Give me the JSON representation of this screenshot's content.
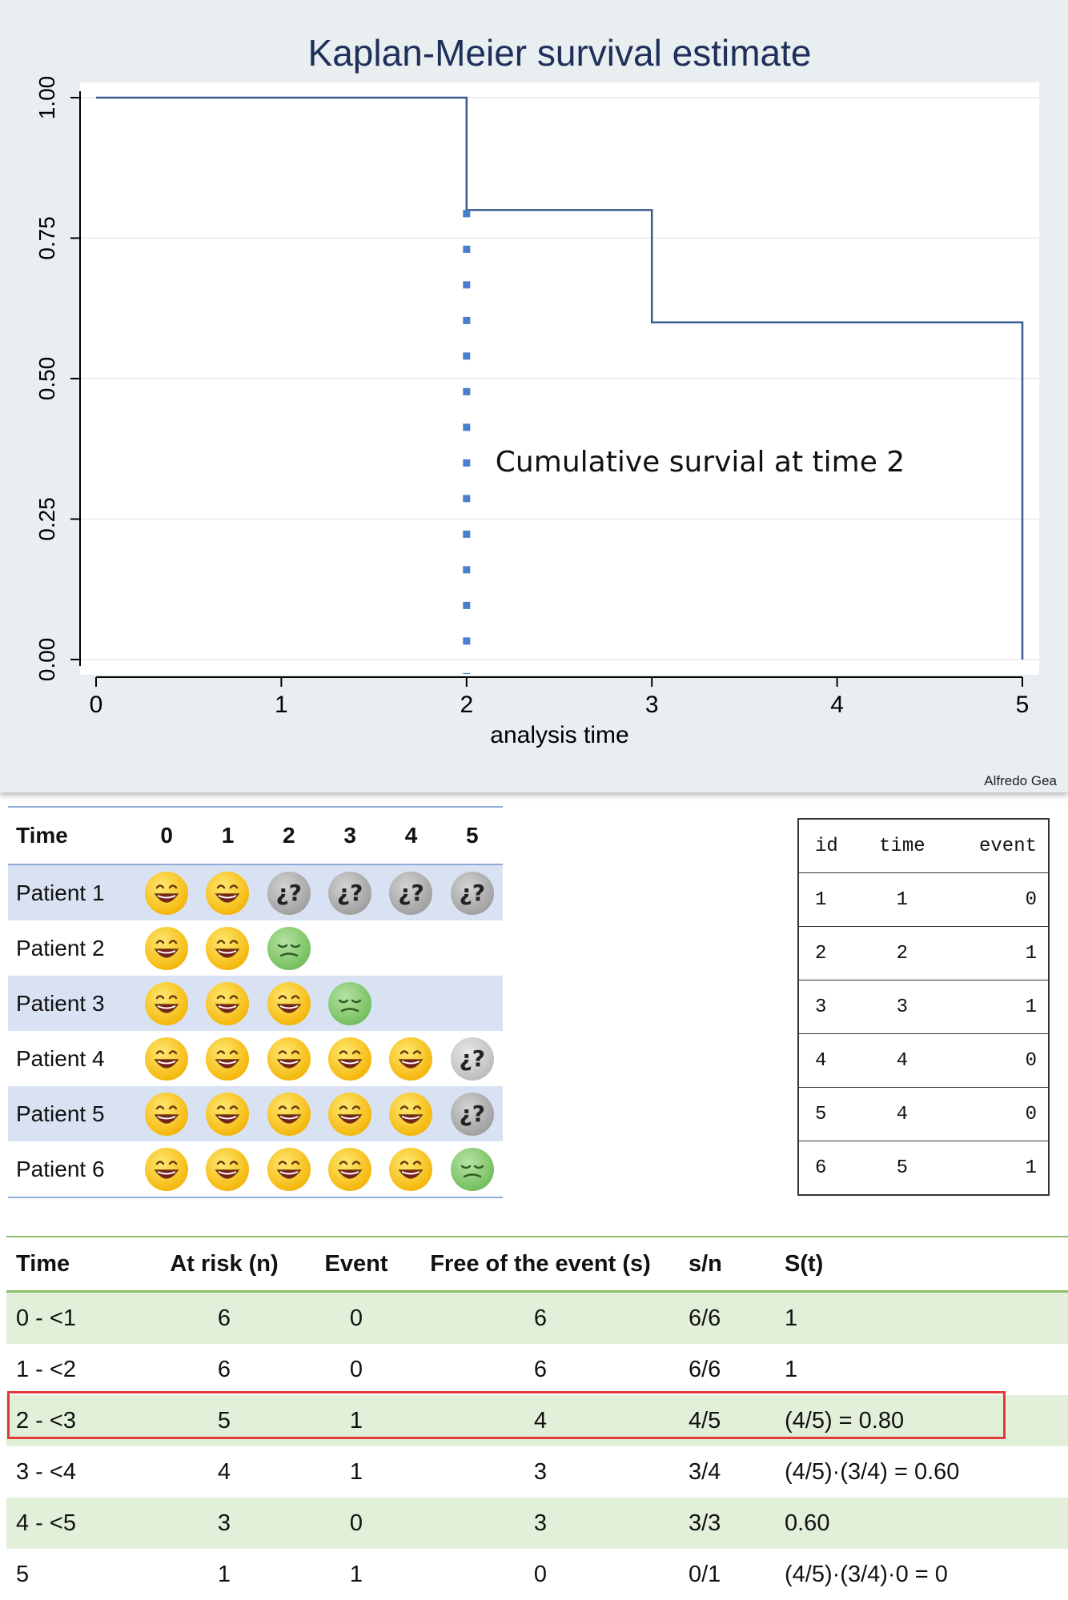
{
  "chart_data": {
    "type": "line",
    "subtype": "step",
    "title": "Kaplan-Meier survival estimate",
    "xlabel": "analysis time",
    "ylabel": "",
    "xlim": [
      0,
      5
    ],
    "ylim": [
      0,
      1
    ],
    "x_ticks": [
      "0",
      "1",
      "2",
      "3",
      "4",
      "5"
    ],
    "y_ticks": [
      "0.00",
      "0.25",
      "0.50",
      "0.75",
      "1.00"
    ],
    "grid": true,
    "series": [
      {
        "x": [
          0,
          2,
          3,
          5,
          5
        ],
        "y": [
          1.0,
          0.8,
          0.6,
          0.6,
          0.0
        ],
        "color": "#3b5b8a"
      }
    ],
    "annotations": [
      {
        "text": "Cumulative survial at time 2",
        "x": 2,
        "y_start": 0.8,
        "y_end": 0,
        "style": "dotted",
        "color": "#4a7fcf"
      }
    ]
  },
  "credit": "Alfredo Gea",
  "patients_table": {
    "header": [
      "Time",
      "0",
      "1",
      "2",
      "3",
      "4",
      "5"
    ],
    "rows": [
      {
        "label": "Patient 1",
        "states": [
          "happy",
          "happy",
          "unknown",
          "unknown",
          "unknown",
          "unknown"
        ]
      },
      {
        "label": "Patient 2",
        "states": [
          "happy",
          "happy",
          "sad",
          "",
          "",
          ""
        ]
      },
      {
        "label": "Patient 3",
        "states": [
          "happy",
          "happy",
          "happy",
          "sad",
          "",
          ""
        ]
      },
      {
        "label": "Patient 4",
        "states": [
          "happy",
          "happy",
          "happy",
          "happy",
          "happy",
          "unknown-light"
        ]
      },
      {
        "label": "Patient 5",
        "states": [
          "happy",
          "happy",
          "happy",
          "happy",
          "happy",
          "unknown"
        ]
      },
      {
        "label": "Patient 6",
        "states": [
          "happy",
          "happy",
          "happy",
          "happy",
          "happy",
          "sad"
        ]
      }
    ],
    "unknown_symbol": "¿?"
  },
  "data_table": {
    "header": [
      "id",
      "time",
      "event"
    ],
    "rows": [
      [
        "1",
        "1",
        "0"
      ],
      [
        "2",
        "2",
        "1"
      ],
      [
        "3",
        "3",
        "1"
      ],
      [
        "4",
        "4",
        "0"
      ],
      [
        "5",
        "4",
        "0"
      ],
      [
        "6",
        "5",
        "1"
      ]
    ]
  },
  "km_table": {
    "header": [
      "Time",
      "At risk (n)",
      "Event",
      "Free of the event (s)",
      "s/n",
      "S(t)"
    ],
    "rows": [
      [
        "0 - <1",
        "6",
        "0",
        "6",
        "6/6",
        "1"
      ],
      [
        "1 - <2",
        "6",
        "0",
        "6",
        "6/6",
        "1"
      ],
      [
        "2 - <3",
        "5",
        "1",
        "4",
        "4/5",
        "(4/5) = 0.80"
      ],
      [
        "3 - <4",
        "4",
        "1",
        "3",
        "3/4",
        "(4/5)·(3/4) = 0.60"
      ],
      [
        "4 - <5",
        "3",
        "0",
        "3",
        "3/3",
        "0.60"
      ],
      [
        "5",
        "1",
        "1",
        "0",
        "0/1",
        "(4/5)·(3/4)·0 = 0"
      ]
    ],
    "highlighted_row": 2
  }
}
